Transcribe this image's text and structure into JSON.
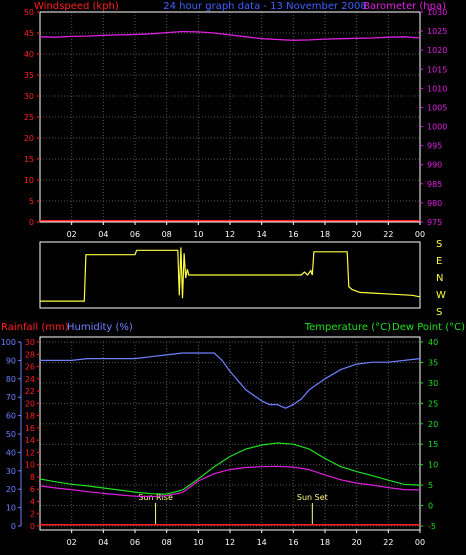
{
  "colors": {
    "background": "#000000",
    "frame": "#ffffff",
    "grid": "#555555",
    "wind": "#ff2020",
    "title": "#4060ff",
    "baro": "#e020e0",
    "direction": "#ffff40",
    "rain": "#ff2020",
    "humidity": "#7080ff",
    "temperature": "#20e020",
    "dewpoint": "#e020e0",
    "sun": "#ffff80",
    "tick_text": "#ffffff"
  },
  "time_ticks": [
    "02",
    "04",
    "06",
    "08",
    "10",
    "12",
    "14",
    "16",
    "18",
    "20",
    "22",
    "00"
  ],
  "chart_data": [
    {
      "type": "line",
      "title": "24 hour graph data - 13 November 2008",
      "x": "hours, 00 to 24",
      "axes": {
        "left": {
          "label": "Windspeed (kph)",
          "ticks": [
            0,
            5,
            10,
            15,
            20,
            25,
            30,
            35,
            40,
            45,
            50
          ],
          "range": [
            0,
            50
          ]
        },
        "right": {
          "label": "Barometer (hpa)",
          "ticks": [
            975,
            980,
            985,
            990,
            995,
            1000,
            1005,
            1010,
            1015,
            1020,
            1025,
            1030
          ],
          "range": [
            975,
            1030
          ]
        }
      },
      "grid": true,
      "series": [
        {
          "name": "Windspeed (kph)",
          "axis": "left",
          "points": [
            [
              0,
              0.3
            ],
            [
              24,
              0.3
            ]
          ]
        },
        {
          "name": "Barometer (hpa)",
          "axis": "right",
          "points": [
            [
              0,
              1023.5
            ],
            [
              1,
              1023.4
            ],
            [
              2,
              1023.6
            ],
            [
              3,
              1023.7
            ],
            [
              4,
              1023.9
            ],
            [
              5,
              1024.0
            ],
            [
              6,
              1024.1
            ],
            [
              7,
              1024.3
            ],
            [
              8,
              1024.6
            ],
            [
              9,
              1024.9
            ],
            [
              10,
              1024.8
            ],
            [
              11,
              1024.5
            ],
            [
              12,
              1024.0
            ],
            [
              13,
              1023.5
            ],
            [
              14,
              1023.0
            ],
            [
              15,
              1022.8
            ],
            [
              16,
              1022.6
            ],
            [
              17,
              1022.7
            ],
            [
              18,
              1022.9
            ],
            [
              19,
              1023.0
            ],
            [
              20,
              1023.1
            ],
            [
              21,
              1023.2
            ],
            [
              22,
              1023.4
            ],
            [
              23,
              1023.5
            ],
            [
              24,
              1023.2
            ]
          ]
        }
      ]
    },
    {
      "type": "line",
      "title": "",
      "axes": {
        "right": {
          "ticks": [
            "S",
            "E",
            "N",
            "W",
            "S"
          ],
          "range": [
            0,
            4
          ]
        }
      },
      "series": [
        {
          "name": "",
          "points": [
            [
              0,
              0.2
            ],
            [
              2.8,
              0.2
            ],
            [
              2.9,
              3.4
            ],
            [
              6,
              3.4
            ],
            [
              6.1,
              3.7
            ],
            [
              8.7,
              3.7
            ],
            [
              8.8,
              0.6
            ],
            [
              8.9,
              3.9
            ],
            [
              9.0,
              0.4
            ],
            [
              9.1,
              3.5
            ],
            [
              9.2,
              1.8
            ],
            [
              9.3,
              2.4
            ],
            [
              9.4,
              2.0
            ],
            [
              16.5,
              2.0
            ],
            [
              16.7,
              2.2
            ],
            [
              16.9,
              2.0
            ],
            [
              17.1,
              2.3
            ],
            [
              17.2,
              2.0
            ],
            [
              17.3,
              3.6
            ],
            [
              19.4,
              3.6
            ],
            [
              19.5,
              1.2
            ],
            [
              19.7,
              1.0
            ],
            [
              20.2,
              0.8
            ],
            [
              23.5,
              0.6
            ],
            [
              24,
              0.5
            ]
          ]
        }
      ]
    },
    {
      "type": "line",
      "title": "",
      "axes": {
        "left_rain": {
          "label": "Rainfall (mm)",
          "ticks": [
            0,
            2,
            4,
            6,
            8,
            10,
            12,
            14,
            16,
            18,
            20,
            22,
            24,
            26,
            28,
            30
          ],
          "range": [
            0,
            30
          ]
        },
        "left_humidity": {
          "label": "Humidity (%)",
          "ticks": [
            0,
            10,
            20,
            30,
            40,
            50,
            60,
            70,
            80,
            90,
            100
          ],
          "range": [
            0,
            100
          ]
        },
        "right": {
          "label_temp": "Temperature (°C)",
          "label_dew": "Dew Point (°C)",
          "ticks": [
            -5,
            0,
            5,
            10,
            15,
            20,
            25,
            30,
            35,
            40
          ],
          "range": [
            -5,
            40
          ]
        }
      },
      "grid": true,
      "series": [
        {
          "name": "Rainfall (mm)",
          "axis": "left_rain",
          "points": [
            [
              0,
              0.2
            ],
            [
              24,
              0.2
            ]
          ]
        },
        {
          "name": "Humidity (%)",
          "axis": "left_humidity",
          "points": [
            [
              0,
              90
            ],
            [
              1,
              90
            ],
            [
              2,
              90
            ],
            [
              3,
              91
            ],
            [
              4,
              91
            ],
            [
              5,
              91
            ],
            [
              6,
              91
            ],
            [
              7,
              92
            ],
            [
              8,
              93
            ],
            [
              9,
              94
            ],
            [
              10,
              94
            ],
            [
              11,
              94
            ],
            [
              11.5,
              90
            ],
            [
              12,
              84
            ],
            [
              13,
              74
            ],
            [
              14,
              68
            ],
            [
              14.5,
              66
            ],
            [
              15,
              66
            ],
            [
              15.5,
              64
            ],
            [
              16,
              66
            ],
            [
              16.5,
              69
            ],
            [
              17,
              74
            ],
            [
              18,
              80
            ],
            [
              19,
              85
            ],
            [
              20,
              88
            ],
            [
              21,
              89
            ],
            [
              22,
              89
            ],
            [
              23,
              90
            ],
            [
              24,
              91
            ]
          ]
        },
        {
          "name": "Temperature (°C)",
          "axis": "right",
          "points": [
            [
              0,
              6.5
            ],
            [
              1,
              5.8
            ],
            [
              2,
              5.2
            ],
            [
              3,
              4.8
            ],
            [
              4,
              4.3
            ],
            [
              5,
              3.8
            ],
            [
              6,
              3.3
            ],
            [
              7,
              2.9
            ],
            [
              8,
              2.8
            ],
            [
              9,
              3.8
            ],
            [
              10,
              6.5
            ],
            [
              11,
              9.5
            ],
            [
              12,
              12
            ],
            [
              13,
              13.8
            ],
            [
              14,
              14.8
            ],
            [
              15,
              15.3
            ],
            [
              16,
              15.0
            ],
            [
              17,
              13.8
            ],
            [
              18,
              11.5
            ],
            [
              19,
              9.5
            ],
            [
              20,
              8.3
            ],
            [
              21,
              7.3
            ],
            [
              22,
              6.2
            ],
            [
              23,
              5.2
            ],
            [
              24,
              5.0
            ]
          ]
        },
        {
          "name": "Dew Point (°C)",
          "axis": "right",
          "points": [
            [
              0,
              4.8
            ],
            [
              1,
              4.3
            ],
            [
              2,
              3.9
            ],
            [
              3,
              3.4
            ],
            [
              4,
              3.0
            ],
            [
              5,
              2.6
            ],
            [
              6,
              2.3
            ],
            [
              7,
              2.2
            ],
            [
              8,
              2.4
            ],
            [
              9,
              3.2
            ],
            [
              10,
              6.0
            ],
            [
              11,
              7.8
            ],
            [
              12,
              8.8
            ],
            [
              13,
              9.3
            ],
            [
              14,
              9.5
            ],
            [
              15,
              9.6
            ],
            [
              16,
              9.4
            ],
            [
              17,
              8.8
            ],
            [
              18,
              7.5
            ],
            [
              19,
              6.3
            ],
            [
              20,
              5.5
            ],
            [
              21,
              5.0
            ],
            [
              22,
              4.4
            ],
            [
              23,
              3.9
            ],
            [
              24,
              3.8
            ]
          ]
        }
      ],
      "annotations": [
        {
          "text": "Sun Rise",
          "x": 7.3
        },
        {
          "text": "Sun Set",
          "x": 17.2
        }
      ]
    }
  ]
}
